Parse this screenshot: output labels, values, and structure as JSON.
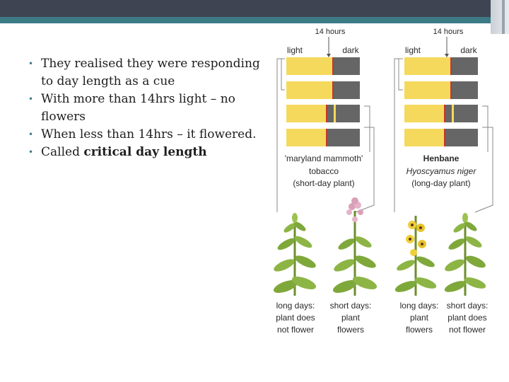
{
  "slide": {
    "bullets": [
      {
        "text": "They realised they were responding to  day length as a cue"
      },
      {
        "text": "With more than 14hrs light – no flowers"
      },
      {
        "text": "When less than 14hrs – it flowered."
      },
      {
        "prefix": "Called ",
        "emphasis": "critical day length"
      }
    ]
  },
  "diagram": {
    "hours_label": "14 hours",
    "light_label": "light",
    "dark_label": "dark",
    "colors": {
      "light": "#f5d95c",
      "dark": "#666666",
      "marker": "#c0392b",
      "bracket": "#888888"
    },
    "tobacco": {
      "name": "'maryland mammoth'",
      "sub": "tobacco",
      "type": "(short-day plant)",
      "bars": [
        {
          "light_fraction": 0.63,
          "split": false
        },
        {
          "light_fraction": 0.63,
          "split": false
        },
        {
          "light_fraction": 0.55,
          "split": true
        },
        {
          "light_fraction": 0.55,
          "split": false
        }
      ],
      "captions": [
        {
          "l1": "long days:",
          "l2": "plant does",
          "l3": "not flower"
        },
        {
          "l1": "short days:",
          "l2": "plant",
          "l3": "flowers"
        }
      ]
    },
    "henbane": {
      "name": "Henbane",
      "sub": "Hyoscyamus niger",
      "type": "(long-day plant)",
      "bars": [
        {
          "light_fraction": 0.63,
          "split": false
        },
        {
          "light_fraction": 0.63,
          "split": false
        },
        {
          "light_fraction": 0.55,
          "split": true
        },
        {
          "light_fraction": 0.55,
          "split": false
        }
      ],
      "captions": [
        {
          "l1": "long days:",
          "l2": "plant",
          "l3": "flowers"
        },
        {
          "l1": "short days:",
          "l2": "plant does",
          "l3": "not flower"
        }
      ]
    }
  }
}
